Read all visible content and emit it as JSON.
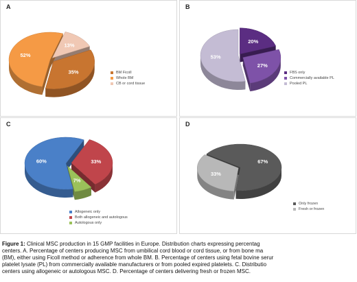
{
  "chart_data": [
    {
      "panel": "A",
      "type": "pie",
      "categories": [
        "BM Ficoll",
        "Whole BM",
        "CB or cord tissue"
      ],
      "values": [
        35,
        52,
        13
      ],
      "value_labels": [
        "35%",
        "52%",
        "13%"
      ],
      "colors": [
        "#c87530",
        "#f59a45",
        "#f0c8b4"
      ],
      "legend_position": "right"
    },
    {
      "panel": "B",
      "type": "pie",
      "categories": [
        "FBS only",
        "Commercially available PL",
        "Pooled PL"
      ],
      "values": [
        20,
        27,
        53
      ],
      "value_labels": [
        "20%",
        "27%",
        "53%"
      ],
      "colors": [
        "#5b2d82",
        "#7e52a8",
        "#c4bcd4"
      ],
      "legend_position": "right"
    },
    {
      "panel": "C",
      "type": "pie",
      "categories": [
        "Allogeneic only",
        "Both allogeneic and autologous",
        "Autologous only"
      ],
      "values": [
        60,
        33,
        7
      ],
      "value_labels": [
        "60%",
        "33%",
        "7%"
      ],
      "colors": [
        "#4a80c8",
        "#c0454b",
        "#9bc15a"
      ],
      "legend_position": "bottom-right"
    },
    {
      "panel": "D",
      "type": "pie",
      "categories": [
        "Only frozen",
        "Fresh or frozen"
      ],
      "values": [
        67,
        33
      ],
      "value_labels": [
        "67%",
        "33%"
      ],
      "colors": [
        "#5a5a5a",
        "#b8b8b8"
      ],
      "legend_position": "right"
    }
  ],
  "caption": {
    "lines": [
      {
        "bold": "Figure 1:",
        "text": " Clinical MSC production in 15 GMP facilities in Europe. Distribution charts expressing percentag"
      },
      {
        "bold": "",
        "text": "centers. A. Percentage of centers producing MSC from umbilical cord blood or cord tissue, or from bone ma"
      },
      {
        "bold": "",
        "text": "(BM), either using Ficoll method or adherence from whole BM. B. Percentage of centers using fetal bovine serur"
      },
      {
        "bold": "",
        "text": "platelet lysate (PL) from commercially available manufacturers or from pooled expired platelets. C. Distributio"
      },
      {
        "bold": "",
        "text": "centers using allogeneic or autologous MSC. D. Percentage of centers delivering fresh or frozen MSC."
      }
    ]
  }
}
